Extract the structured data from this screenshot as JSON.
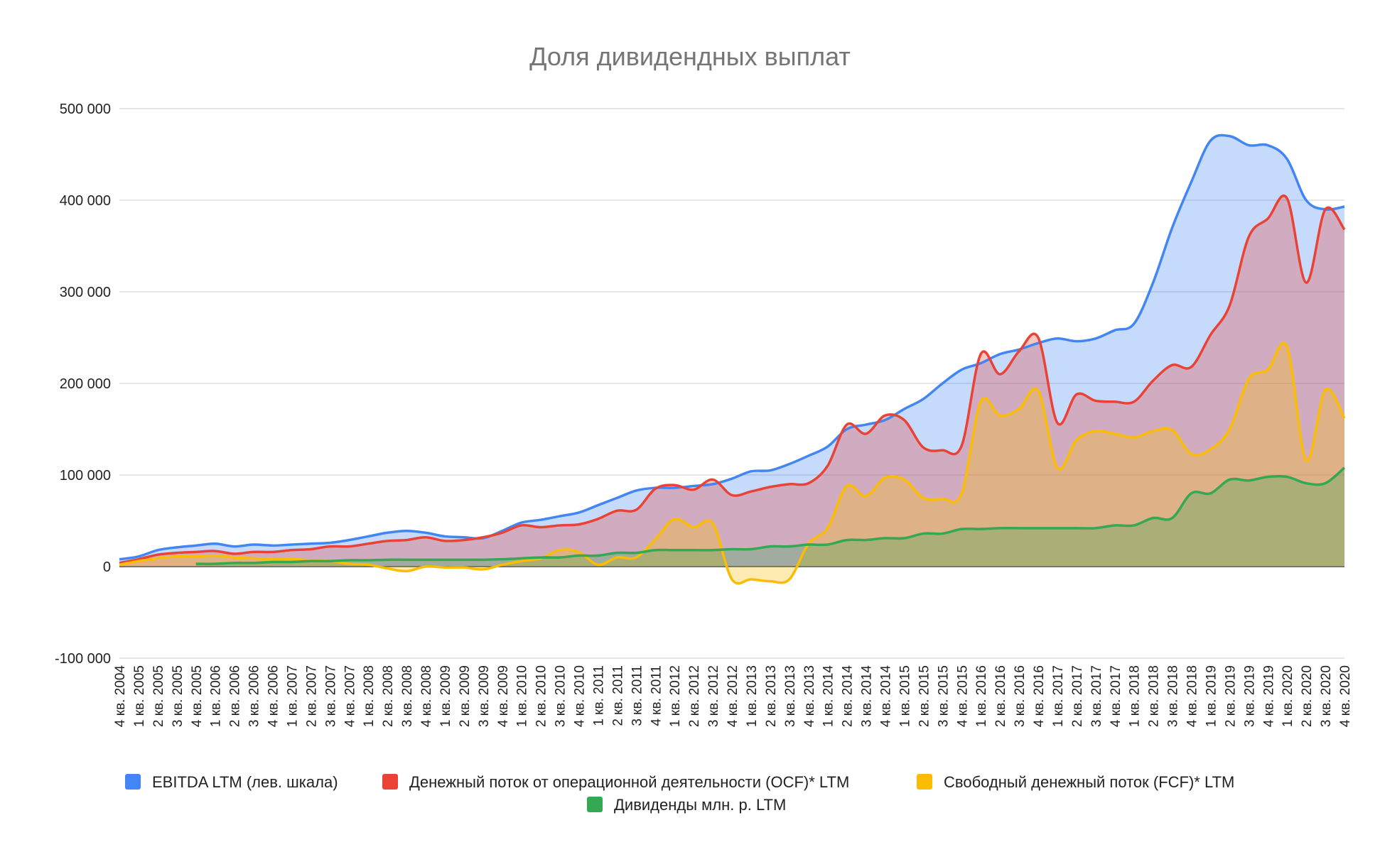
{
  "chart_data": {
    "type": "area",
    "title": "Доля дивидендных выплат",
    "xlabel": "",
    "ylabel": "",
    "ylim": [
      -100000,
      500000
    ],
    "yticks": [
      500000,
      400000,
      300000,
      200000,
      100000,
      0,
      -100000
    ],
    "ytick_labels": [
      "500 000",
      "400 000",
      "300 000",
      "200 000",
      "100 000",
      "0",
      "-100 000"
    ],
    "grid": true,
    "legend_position": "bottom",
    "categories": [
      "4 кв. 2004",
      "1 кв. 2005",
      "2 кв. 2005",
      "3 кв. 2005",
      "4 кв. 2005",
      "1 кв. 2006",
      "2 кв. 2006",
      "3 кв. 2006",
      "4 кв. 2006",
      "1 кв. 2007",
      "2 кв. 2007",
      "3 кв. 2007",
      "4 кв. 2007",
      "1 кв. 2008",
      "2 кв. 2008",
      "3 кв. 2008",
      "4 кв. 2008",
      "1 кв. 2009",
      "2 кв. 2009",
      "3 кв. 2009",
      "4 кв. 2009",
      "1 кв. 2010",
      "2 кв. 2010",
      "3 кв. 2010",
      "4 кв. 2010",
      "1 кв. 2011",
      "2 кв. 2011",
      "3 кв. 2011",
      "4 кв. 2011",
      "1 кв. 2012",
      "2 кв. 2012",
      "3 кв. 2012",
      "4 кв. 2012",
      "1 кв. 2013",
      "2 кв. 2013",
      "3 кв. 2013",
      "4 кв. 2013",
      "1 кв. 2014",
      "2 кв. 2014",
      "3 кв. 2014",
      "4 кв. 2014",
      "1 кв. 2015",
      "2 кв. 2015",
      "3 кв. 2015",
      "4 кв. 2015",
      "1 кв. 2016",
      "2 кв. 2016",
      "3 кв. 2016",
      "4 кв. 2016",
      "1 кв. 2017",
      "2 кв. 2017",
      "3 кв. 2017",
      "4 кв. 2017",
      "1 кв. 2018",
      "2 кв. 2018",
      "3 кв. 2018",
      "4 кв. 2018",
      "1 кв. 2019",
      "2 кв. 2019",
      "3 кв. 2019",
      "4 кв. 2019",
      "1 кв. 2020",
      "2 кв. 2020",
      "3 кв. 2020",
      "4 кв. 2020"
    ],
    "series": [
      {
        "name": "EBITDA LTM (лев. шкала)",
        "color": "#4285f4",
        "values": [
          8000,
          11000,
          18000,
          21000,
          23000,
          25000,
          22000,
          24000,
          23000,
          24000,
          25000,
          26000,
          29000,
          33000,
          37000,
          39000,
          37000,
          33000,
          32000,
          31000,
          39000,
          48000,
          51000,
          55000,
          59000,
          67000,
          75000,
          83000,
          86000,
          86000,
          88000,
          90000,
          96000,
          104000,
          105000,
          112000,
          121000,
          131000,
          150000,
          155000,
          160000,
          172000,
          183000,
          200000,
          215000,
          222000,
          232000,
          237000,
          244000,
          249000,
          246000,
          249000,
          258000,
          265000,
          310000,
          370000,
          420000,
          465000,
          470000,
          460000,
          460000,
          445000,
          400000,
          390000,
          393000
        ]
      },
      {
        "name": "Денежный поток от операционной деятельности (OCF)* LTM",
        "color": "#ea4335",
        "values": [
          4000,
          8000,
          13000,
          15000,
          16000,
          17000,
          14000,
          16000,
          16000,
          18000,
          19000,
          22000,
          22000,
          25000,
          28000,
          29000,
          32000,
          28000,
          29000,
          32000,
          37000,
          45000,
          43000,
          45000,
          46000,
          52000,
          61000,
          62000,
          85000,
          89000,
          84000,
          95000,
          78000,
          82000,
          87000,
          90000,
          91000,
          110000,
          155000,
          145000,
          165000,
          160000,
          130000,
          127000,
          132000,
          232000,
          210000,
          235000,
          250000,
          157000,
          188000,
          181000,
          180000,
          180000,
          203000,
          220000,
          218000,
          253000,
          285000,
          360000,
          380000,
          402000,
          310000,
          390000,
          368000
        ]
      },
      {
        "name": "Свободный денежный поток (FCF)* LTM",
        "color": "#fbbc04",
        "values": [
          2000,
          6000,
          9000,
          11000,
          11000,
          12000,
          10000,
          9000,
          8000,
          8000,
          7000,
          6000,
          3000,
          2000,
          -2000,
          -5000,
          0,
          -1000,
          -1000,
          -3000,
          2000,
          6000,
          9000,
          18000,
          16000,
          2000,
          10000,
          10000,
          30000,
          52000,
          43000,
          47000,
          -14000,
          -14000,
          -16000,
          -14000,
          25000,
          42000,
          88000,
          77000,
          97000,
          95000,
          75000,
          74000,
          80000,
          180000,
          165000,
          172000,
          192000,
          108000,
          138000,
          148000,
          145000,
          141000,
          148000,
          149000,
          123000,
          128000,
          150000,
          205000,
          215000,
          240000,
          116000,
          193000,
          162000
        ]
      },
      {
        "name": "Дивиденды млн. р. LTM",
        "color": "#34a853",
        "values": [
          null,
          null,
          null,
          null,
          3000,
          3000,
          4000,
          4000,
          5000,
          5000,
          6000,
          6000,
          7000,
          7000,
          7500,
          7500,
          7500,
          7500,
          7500,
          7500,
          8000,
          9000,
          10000,
          10000,
          12000,
          12000,
          15000,
          15000,
          18000,
          18000,
          18000,
          18000,
          19000,
          19000,
          22000,
          22000,
          24000,
          24000,
          29000,
          29000,
          31000,
          31000,
          36000,
          36000,
          41000,
          41000,
          42000,
          42000,
          42000,
          42000,
          42000,
          42000,
          45000,
          45000,
          53000,
          53000,
          80000,
          80000,
          95000,
          94000,
          98000,
          98000,
          91000,
          91000,
          108000
        ]
      }
    ]
  }
}
